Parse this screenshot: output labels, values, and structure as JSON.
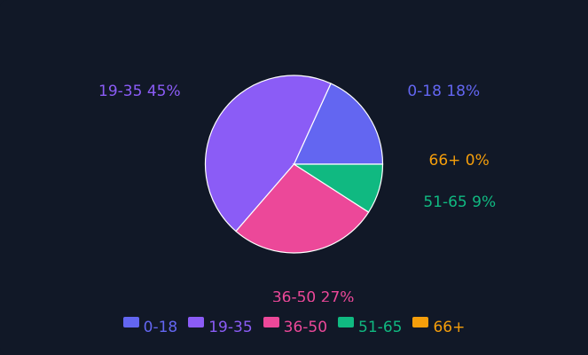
{
  "chart_data": {
    "type": "pie",
    "categories": [
      "0-18",
      "19-35",
      "36-50",
      "51-65",
      "66+"
    ],
    "values": [
      18,
      45,
      27,
      9,
      0
    ],
    "data_labels": [
      "0-18 18%",
      "19-35 45%",
      "36-50 27%",
      "51-65 9%",
      "66+ 0%"
    ],
    "colors": [
      "#6366f1",
      "#8b5cf6",
      "#ec4899",
      "#10b981",
      "#f59e0b"
    ],
    "title": "",
    "legend_position": "bottom"
  },
  "theme": {
    "background": "#111827",
    "slice_border": "#ffffff"
  }
}
